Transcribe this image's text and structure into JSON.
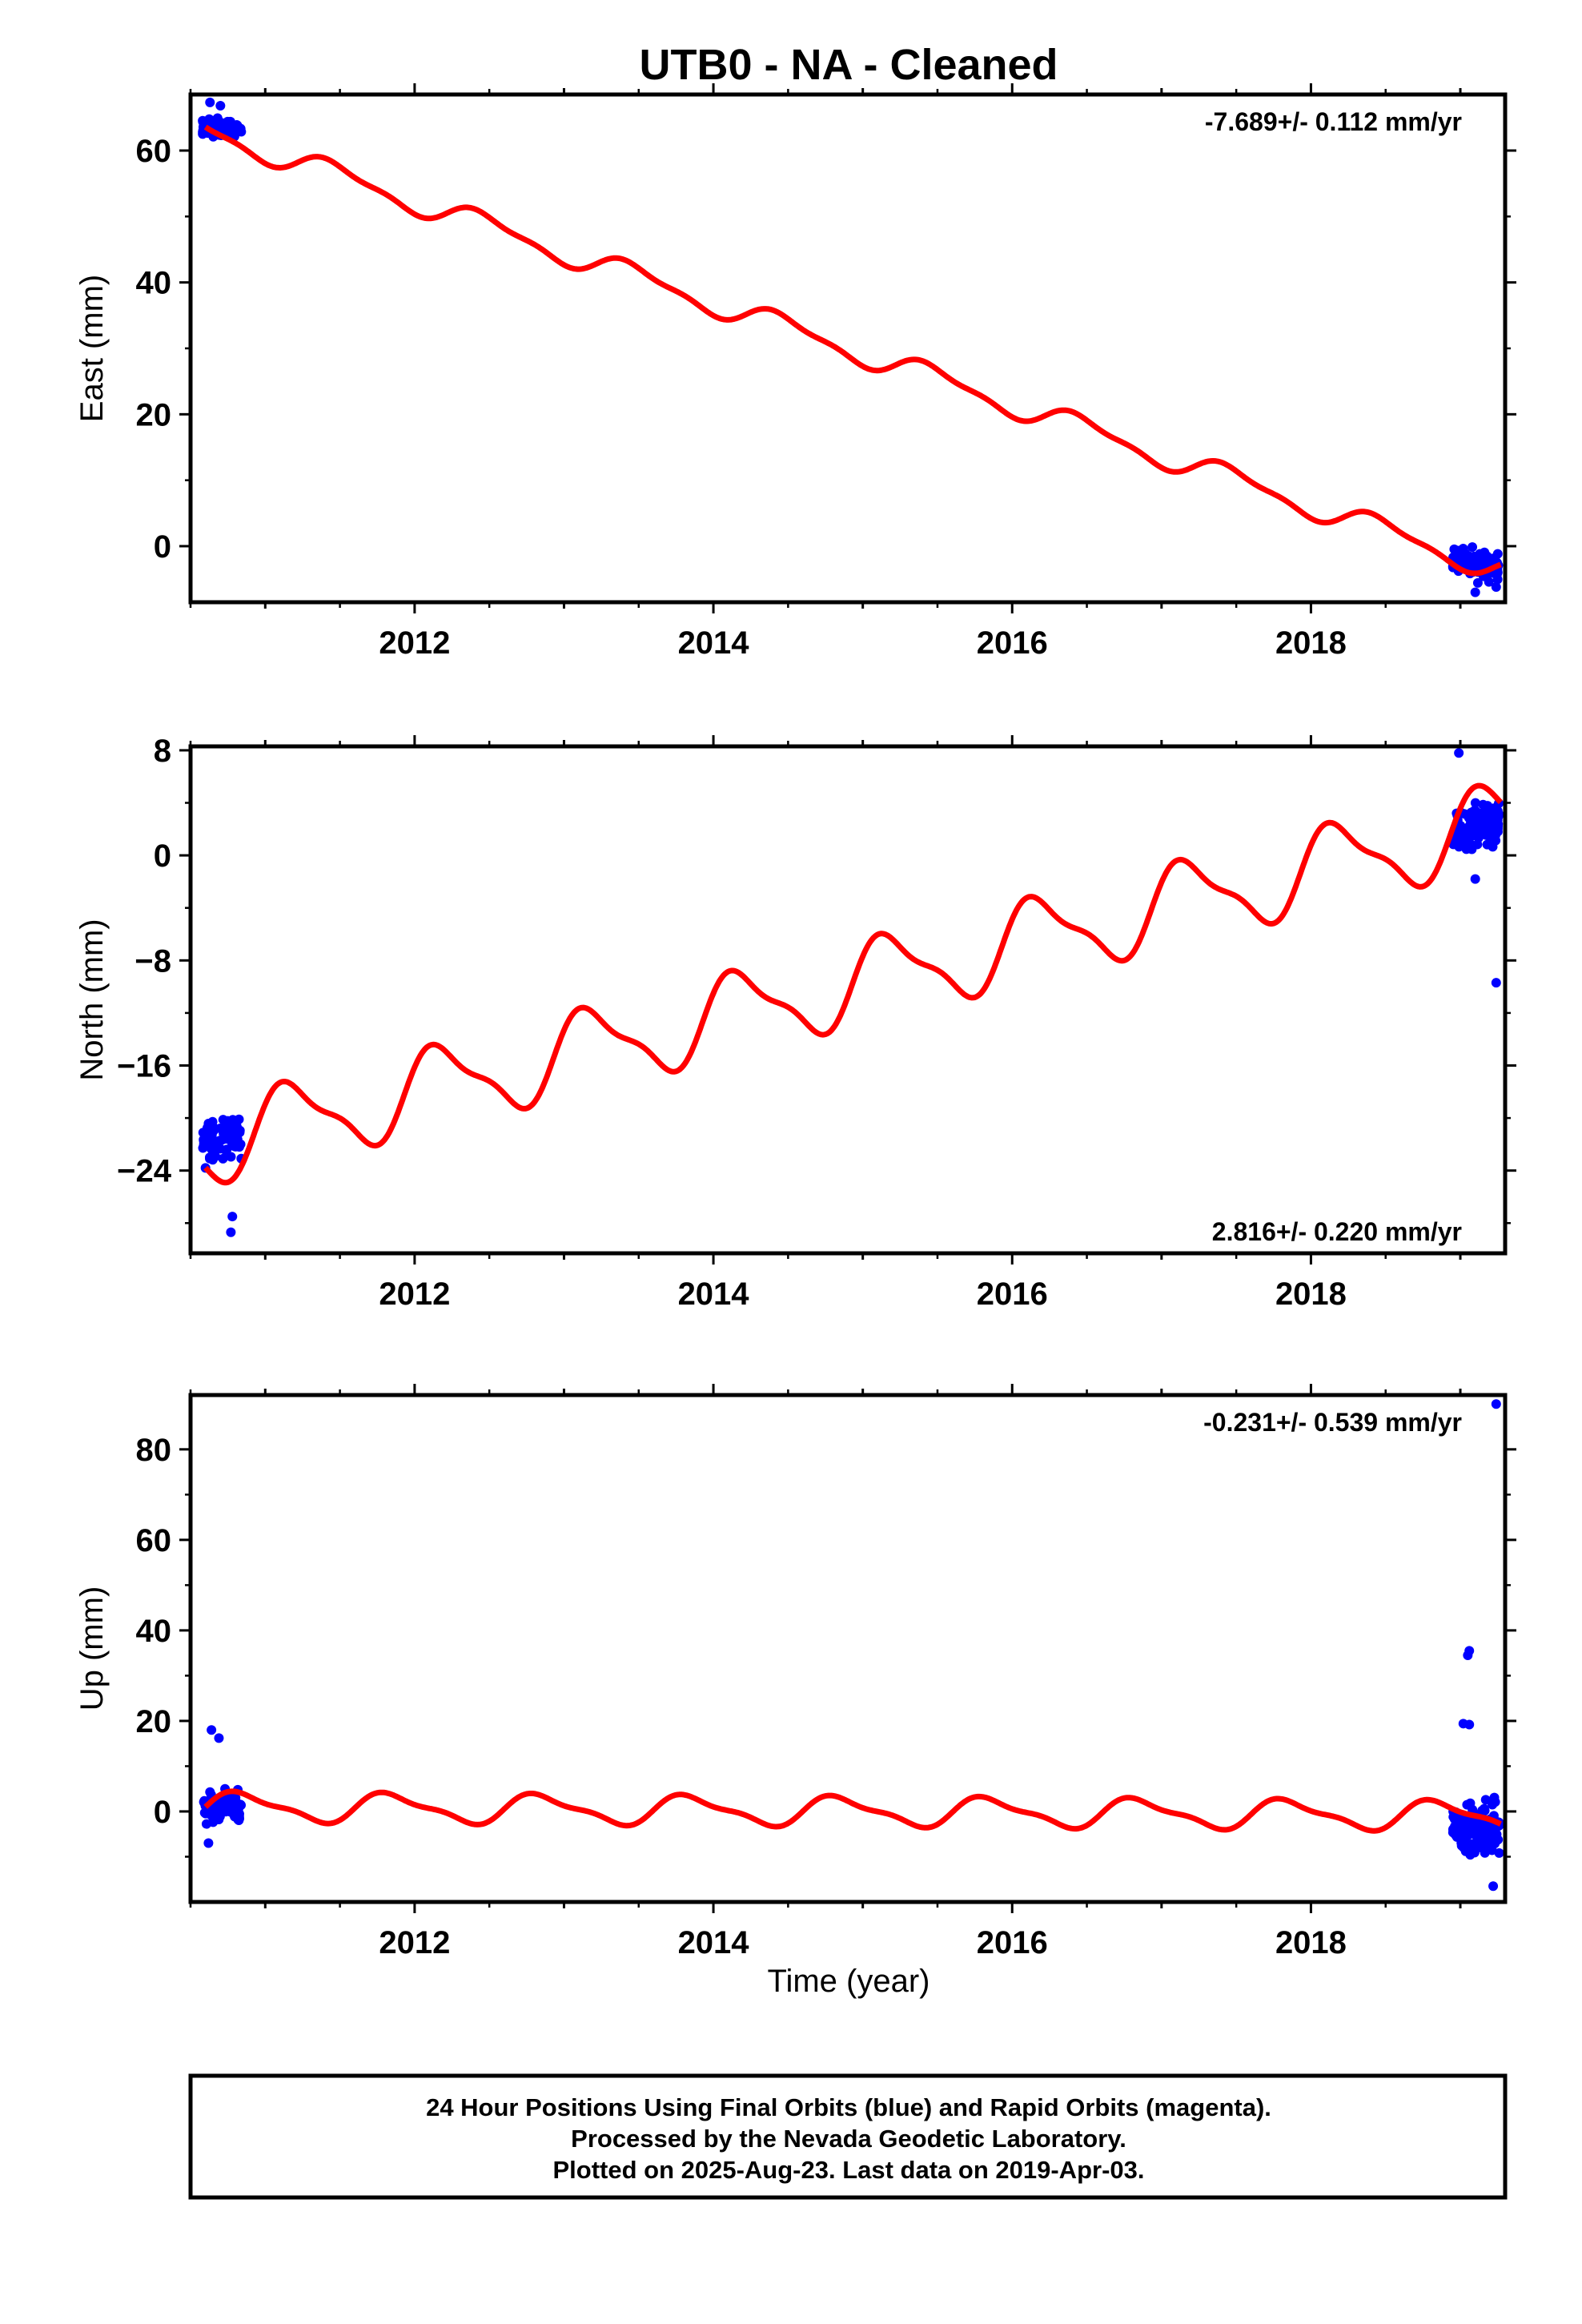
{
  "title": "UTB0  - NA - Cleaned",
  "x_axis_label": "Time (year)",
  "footer": {
    "line1": "24 Hour Positions Using Final Orbits (blue) and Rapid Orbits (magenta).",
    "line2": "Processed by the Nevada Geodetic Laboratory.",
    "line3": "Plotted on 2025-Aug-23. Last data on 2019-Apr-03."
  },
  "colors": {
    "points": "#0000ff",
    "model": "#ff0000",
    "frame": "#000000"
  },
  "chart_data": [
    {
      "type": "scatter",
      "ylabel": "East (mm)",
      "rate_text": "-7.689+/- 0.112 mm/yr",
      "rate_position": "top-right",
      "xlim": [
        2010.5,
        2019.3
      ],
      "ylim": [
        -8.5,
        68.5
      ],
      "x_ticks": [
        2012,
        2014,
        2016,
        2018
      ],
      "y_ticks": [
        0,
        20,
        40,
        60
      ],
      "y_tick_labels": [
        "0",
        "20",
        "40",
        "60"
      ],
      "model": {
        "type": "line",
        "trend_intercept_at_2010_6": 63.0,
        "rate_mm_per_yr": -7.689,
        "annual_amplitude": 1.7,
        "annual_phase_year": 0.62,
        "semiannual_amplitude": 0.6
      },
      "clusters": [
        {
          "x_range": [
            2010.58,
            2010.84
          ],
          "y_center": 63.3,
          "y_spread": 1.4,
          "n": 90,
          "outliers": [
            [
              2010.63,
              67.3
            ],
            [
              2010.7,
              66.8
            ]
          ]
        },
        {
          "x_range": [
            2018.95,
            2019.26
          ],
          "y_center": -1.5,
          "y_spread": 2.0,
          "n": 130,
          "outliers": [
            [
              2019.1,
              -7.0
            ],
            [
              2019.24,
              -6.2
            ]
          ]
        }
      ]
    },
    {
      "type": "scatter",
      "ylabel": "North (mm)",
      "rate_text": "2.816+/- 0.220 mm/yr",
      "rate_position": "bottom-right",
      "xlim": [
        2010.5,
        2019.3
      ],
      "ylim": [
        -30.3,
        8.3
      ],
      "x_ticks": [
        2012,
        2014,
        2016,
        2018
      ],
      "y_ticks": [
        8,
        0,
        -8,
        -16,
        -24
      ],
      "y_tick_labels": [
        "8",
        "0",
        "−8",
        "−16",
        "−24"
      ],
      "model": {
        "type": "line",
        "trend_intercept_at_2010_6": -22.0,
        "rate_mm_per_yr": 2.816,
        "annual_amplitude": 2.9,
        "annual_phase_year": 0.33,
        "semiannual_amplitude": 0.9
      },
      "clusters": [
        {
          "x_range": [
            2010.58,
            2010.84
          ],
          "y_center": -21.5,
          "y_spread": 1.8,
          "n": 80,
          "outliers": [
            [
              2010.77,
              -28.7
            ],
            [
              2010.78,
              -27.5
            ],
            [
              2010.6,
              -23.8
            ]
          ]
        },
        {
          "x_range": [
            2018.95,
            2019.26
          ],
          "y_center": 1.8,
          "y_spread": 1.6,
          "n": 140,
          "outliers": [
            [
              2018.99,
              7.8
            ],
            [
              2019.24,
              -9.7
            ],
            [
              2019.1,
              -1.8
            ]
          ]
        }
      ]
    },
    {
      "type": "scatter",
      "ylabel": "Up (mm)",
      "rate_text": "-0.231+/- 0.539 mm/yr",
      "rate_position": "top-right",
      "xlim": [
        2010.5,
        2019.3
      ],
      "ylim": [
        -20,
        92
      ],
      "x_ticks": [
        2012,
        2014,
        2016,
        2018
      ],
      "x_tick_labels": [
        "2012",
        "2014",
        "2016",
        "2018"
      ],
      "y_ticks": [
        0,
        20,
        40,
        60,
        80
      ],
      "y_tick_labels": [
        "0",
        "20",
        "40",
        "60",
        "80"
      ],
      "model": {
        "type": "line",
        "trend_intercept_at_2010_6": 1.0,
        "rate_mm_per_yr": -0.231,
        "annual_amplitude": 3.0,
        "annual_phase_year": 0.0,
        "semiannual_amplitude": 1.0
      },
      "clusters": [
        {
          "x_range": [
            2010.58,
            2010.84
          ],
          "y_center": 1.0,
          "y_spread": 3.5,
          "n": 90,
          "outliers": [
            [
              2010.64,
              18.0
            ],
            [
              2010.69,
              16.2
            ],
            [
              2010.62,
              -7.0
            ]
          ]
        },
        {
          "x_range": [
            2018.95,
            2019.26
          ],
          "y_center": -3.0,
          "y_spread": 5.0,
          "n": 140,
          "outliers": [
            [
              2019.24,
              90.0
            ],
            [
              2019.06,
              35.5
            ],
            [
              2019.05,
              34.5
            ],
            [
              2019.02,
              19.4
            ],
            [
              2019.06,
              19.2
            ],
            [
              2019.22,
              -16.5
            ]
          ]
        }
      ]
    }
  ]
}
